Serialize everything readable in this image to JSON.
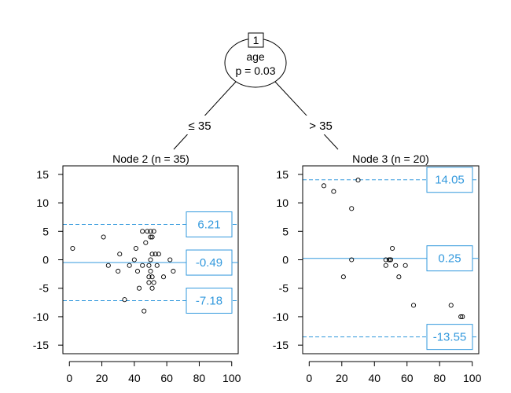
{
  "colors": {
    "accent": "#3399dd",
    "axis": "#000000",
    "point": "#000000"
  },
  "tree": {
    "root": {
      "id": "1",
      "variable": "age",
      "pvalue_text": "p = 0.03",
      "left_edge_label": "≤ 35",
      "right_edge_label": "> 35"
    }
  },
  "chart_data": [
    {
      "type": "scatter",
      "title": "Node 2 (n = 35)",
      "xlim": [
        0,
        100
      ],
      "ylim": [
        -16.5,
        16.5
      ],
      "x_ticks": [
        0,
        20,
        40,
        60,
        80,
        100
      ],
      "y_ticks": [
        -15,
        -10,
        -5,
        0,
        5,
        10,
        15
      ],
      "points": [
        [
          2,
          2
        ],
        [
          21,
          4
        ],
        [
          24,
          -1
        ],
        [
          30,
          -2
        ],
        [
          31,
          1
        ],
        [
          34,
          -7
        ],
        [
          37,
          -1
        ],
        [
          40,
          0
        ],
        [
          41,
          2
        ],
        [
          42,
          -2
        ],
        [
          43,
          -5
        ],
        [
          45,
          -1
        ],
        [
          45,
          5
        ],
        [
          46,
          -9
        ],
        [
          47,
          3
        ],
        [
          48,
          5
        ],
        [
          49,
          -1
        ],
        [
          49,
          -3
        ],
        [
          49,
          -4
        ],
        [
          50,
          4
        ],
        [
          50,
          -2
        ],
        [
          50,
          0
        ],
        [
          50,
          5
        ],
        [
          51,
          -3
        ],
        [
          51,
          -5
        ],
        [
          51,
          1
        ],
        [
          51,
          4
        ],
        [
          52,
          -4
        ],
        [
          52,
          5
        ],
        [
          53,
          1
        ],
        [
          54,
          -1
        ],
        [
          55,
          1
        ],
        [
          58,
          -3
        ],
        [
          62,
          0
        ],
        [
          64,
          -2
        ]
      ],
      "lines": [
        {
          "value": 6.21,
          "label": "6.21",
          "style": "dashed"
        },
        {
          "value": -0.49,
          "label": "-0.49",
          "style": "solid"
        },
        {
          "value": -7.18,
          "label": "-7.18",
          "style": "dashed"
        }
      ]
    },
    {
      "type": "scatter",
      "title": "Node 3 (n = 20)",
      "xlim": [
        0,
        100
      ],
      "ylim": [
        -16.5,
        16.5
      ],
      "x_ticks": [
        0,
        20,
        40,
        60,
        80,
        100
      ],
      "y_ticks": [
        -15,
        -10,
        -5,
        0,
        5,
        10,
        15
      ],
      "points": [
        [
          9,
          13
        ],
        [
          15,
          12
        ],
        [
          21,
          -3
        ],
        [
          26,
          9
        ],
        [
          26,
          0
        ],
        [
          30,
          14
        ],
        [
          47,
          -1
        ],
        [
          47,
          0
        ],
        [
          49,
          0
        ],
        [
          50,
          0
        ],
        [
          51,
          2
        ],
        [
          53,
          -1
        ],
        [
          55,
          -3
        ],
        [
          59,
          -1
        ],
        [
          64,
          -8
        ],
        [
          87,
          -8
        ],
        [
          93,
          -10
        ],
        [
          94,
          -10
        ],
        [
          49,
          0
        ],
        [
          50,
          0
        ]
      ],
      "lines": [
        {
          "value": 14.05,
          "label": "14.05",
          "style": "dashed"
        },
        {
          "value": 0.25,
          "label": "0.25",
          "style": "solid"
        },
        {
          "value": -13.55,
          "label": "-13.55",
          "style": "dashed"
        }
      ]
    }
  ]
}
